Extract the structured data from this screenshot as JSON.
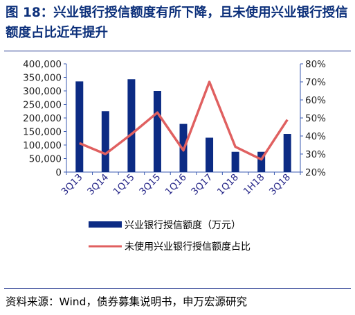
{
  "title": "图 18：兴业银行授信额度有所下降，且未使用兴业银行授信额度占比近年提升",
  "source": "资料来源：Wind，债券募集说明书，申万宏源研究",
  "chart_data": {
    "type": "bar",
    "categories": [
      "3Q13",
      "3Q14",
      "1Q15",
      "3Q15",
      "1Q16",
      "3Q17",
      "1Q18",
      "1H18",
      "3Q18"
    ],
    "series": [
      {
        "name": "兴业银行授信额度（万元）",
        "type": "bar",
        "axis": "left",
        "values": [
          335000,
          225000,
          343000,
          300000,
          178000,
          127000,
          75000,
          75000,
          141000
        ]
      },
      {
        "name": "未使用兴业银行授信额度占比",
        "type": "line",
        "axis": "right",
        "values": [
          0.36,
          0.3,
          0.41,
          0.53,
          0.32,
          0.7,
          0.34,
          0.27,
          0.49
        ]
      }
    ],
    "y_left": {
      "min": 0,
      "max": 400000,
      "tick_labels": [
        "0",
        "50,000",
        "100,000",
        "150,000",
        "200,000",
        "250,000",
        "300,000",
        "350,000",
        "400,000"
      ]
    },
    "y_right": {
      "min": 0.2,
      "max": 0.8,
      "tick_labels": [
        "20%",
        "30%",
        "40%",
        "50%",
        "60%",
        "70%",
        "80%"
      ]
    },
    "legend_position": "bottom",
    "colors": {
      "bar": "#0c2b84",
      "line": "#e06060",
      "axis": "#3a5ab0",
      "title": "#0b2f7a"
    }
  }
}
